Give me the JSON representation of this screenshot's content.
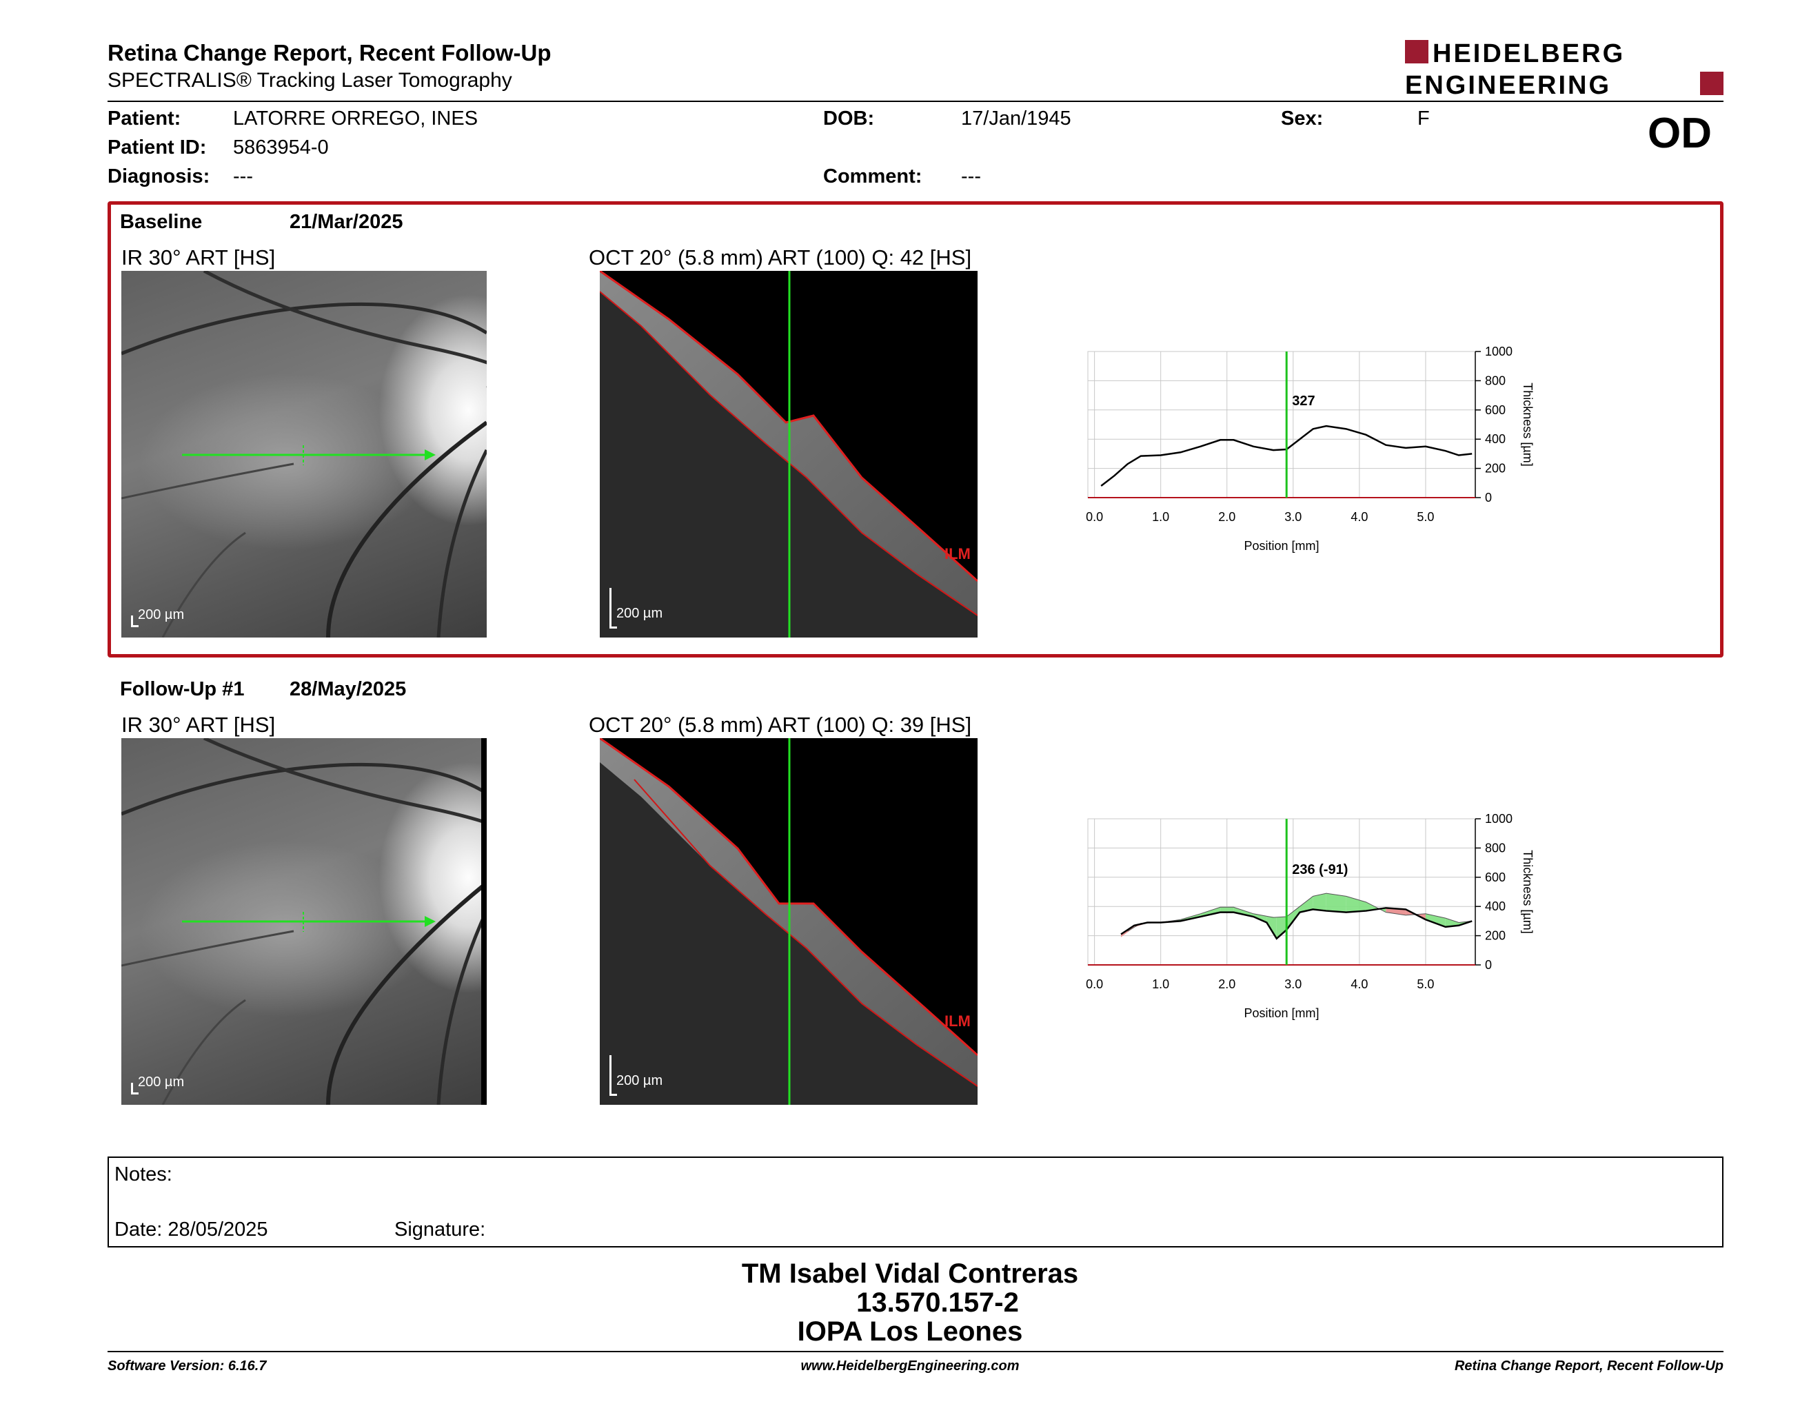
{
  "header": {
    "title": "Retina Change Report, Recent Follow-Up",
    "subtitle": "SPECTRALIS® Tracking Laser Tomography",
    "logo_line1": "HEIDELBERG",
    "logo_line2": "ENGINEERING",
    "eye": "OD"
  },
  "patient": {
    "patient_label": "Patient:",
    "patient_value": "LATORRE ORREGO, INES",
    "id_label": "Patient ID:",
    "id_value": "5863954-0",
    "diagnosis_label": "Diagnosis:",
    "diagnosis_value": "---",
    "dob_label": "DOB:",
    "dob_value": "17/Jan/1945",
    "comment_label": "Comment:",
    "comment_value": "---",
    "sex_label": "Sex:",
    "sex_value": "F"
  },
  "baseline": {
    "label": "Baseline",
    "date": "21/Mar/2025",
    "ir_title": "IR 30° ART [HS]",
    "oct_title": "OCT 20° (5.8 mm) ART (100) Q: 42 [HS]",
    "scale": "200 µm",
    "ilm_label": "ILM",
    "cursor_value": "327"
  },
  "followup": {
    "label": "Follow-Up #1",
    "date": "28/May/2025",
    "ir_title": "IR 30° ART [HS]",
    "oct_title": "OCT 20° (5.8 mm) ART (100) Q: 39 [HS]",
    "scale": "200 µm",
    "ilm_label": "ILM",
    "cursor_value": "236 (-91)"
  },
  "chart_data": [
    {
      "type": "line",
      "xlabel": "Position [mm]",
      "ylabel": "Thickness [µm]",
      "xlim": [
        -0.1,
        5.75
      ],
      "ylim": [
        0,
        1000
      ],
      "x_ticks": [
        "0.0",
        "1.0",
        "2.0",
        "3.0",
        "4.0",
        "5.0"
      ],
      "y_ticks": [
        "0",
        "200",
        "400",
        "600",
        "800",
        "1000"
      ],
      "cursor_x": 2.9,
      "series": [
        {
          "values_x": [
            0.1,
            0.3,
            0.5,
            0.7,
            1.0,
            1.3,
            1.6,
            1.9,
            2.1,
            2.4,
            2.7,
            2.9,
            3.1,
            3.3,
            3.5,
            3.8,
            4.1,
            4.4,
            4.7,
            5.0,
            5.3,
            5.5,
            5.7
          ],
          "values_y": [
            80,
            150,
            230,
            285,
            290,
            310,
            350,
            395,
            395,
            350,
            325,
            330,
            400,
            470,
            490,
            470,
            430,
            360,
            340,
            350,
            320,
            290,
            300
          ]
        }
      ],
      "colors": {
        "line": "#000000",
        "cursor": "#1ec21e",
        "grid": "#c8c8c8"
      }
    },
    {
      "type": "area",
      "xlabel": "Position [mm]",
      "ylabel": "Thickness [µm]",
      "xlim": [
        -0.1,
        5.75
      ],
      "ylim": [
        0,
        1000
      ],
      "x_ticks": [
        "0.0",
        "1.0",
        "2.0",
        "3.0",
        "4.0",
        "5.0"
      ],
      "y_ticks": [
        "0",
        "200",
        "400",
        "600",
        "800",
        "1000"
      ],
      "cursor_x": 2.9,
      "series": [
        {
          "values_x": [
            0.4,
            0.6,
            0.8,
            1.0,
            1.3,
            1.6,
            1.9,
            2.1,
            2.4,
            2.6,
            2.75,
            2.9,
            3.1,
            3.3,
            3.5,
            3.8,
            4.1,
            4.4,
            4.7,
            5.0,
            5.3,
            5.5,
            5.7
          ],
          "values_y": [
            210,
            270,
            290,
            290,
            300,
            330,
            360,
            360,
            330,
            290,
            180,
            240,
            360,
            380,
            370,
            360,
            370,
            390,
            380,
            310,
            260,
            270,
            300
          ]
        }
      ],
      "colors": {
        "increase": "#7ee07e",
        "decrease": "#e88a8a",
        "line": "#000000",
        "cursor": "#1ec21e",
        "grid": "#c8c8c8"
      }
    }
  ],
  "notes": {
    "label": "Notes:",
    "date_label": "Date: 28/05/2025",
    "signature_label": "Signature:"
  },
  "signature": {
    "line1": "TM Isabel Vidal Contreras",
    "line2": "13.570.157-2",
    "line3": "IOPA Los Leones"
  },
  "footer": {
    "left": "Software Version: 6.16.7",
    "center": "www.HeidelbergEngineering.com",
    "right": "Retina Change Report, Recent Follow-Up"
  }
}
